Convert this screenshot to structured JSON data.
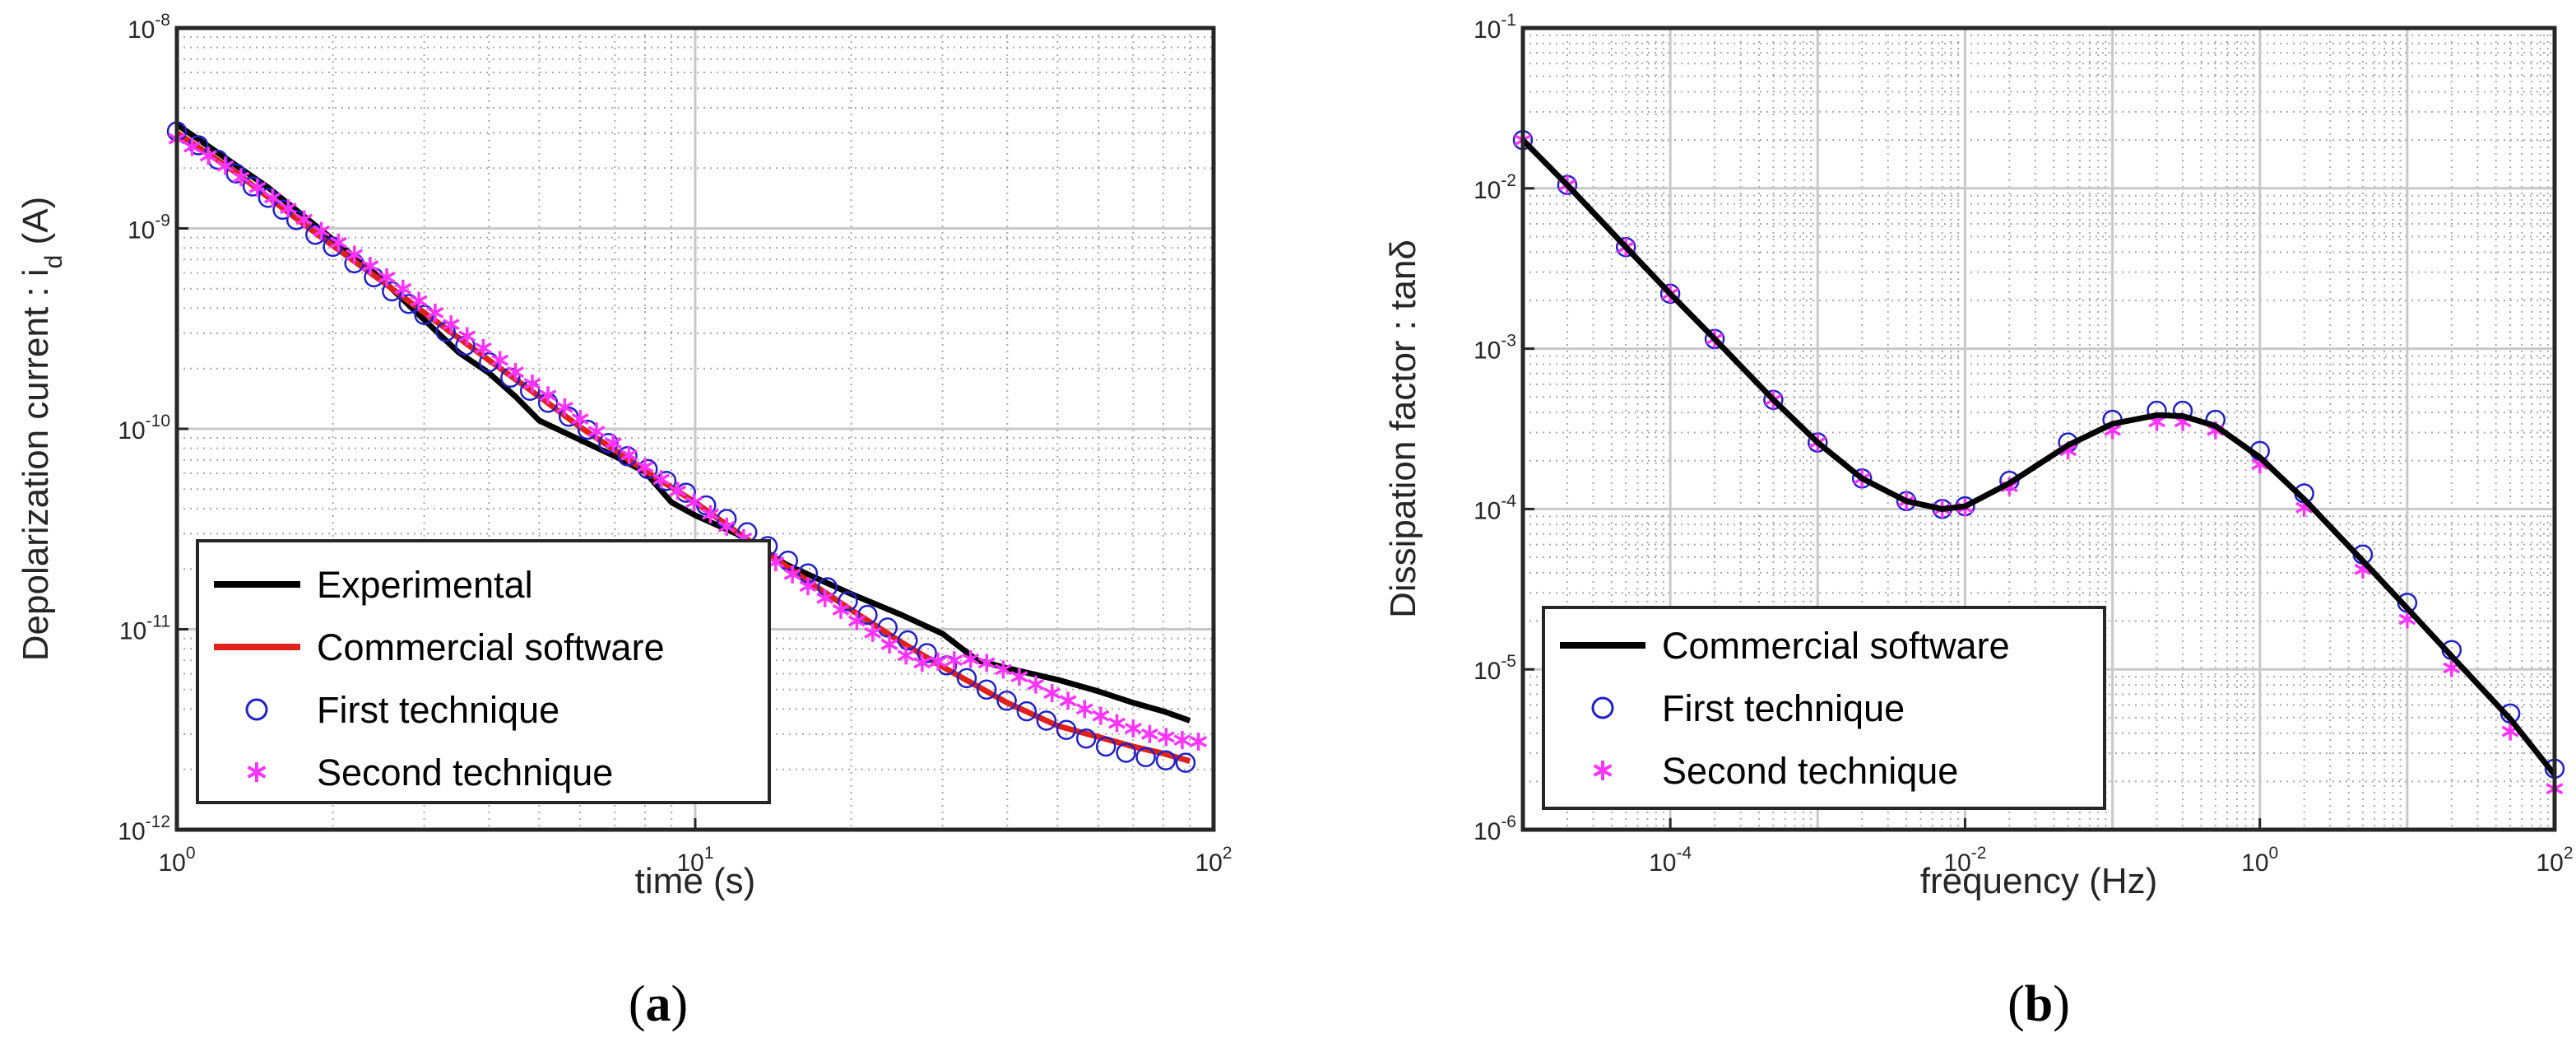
{
  "figure": {
    "panel_labels": [
      "(a)",
      "(b)"
    ]
  },
  "colors": {
    "experimental": "#000000",
    "commercial_a": "#e0201b",
    "first_technique": "#2020c8",
    "second_technique": "#ff33ff",
    "commercial_b": "#000000",
    "grid_major": "#c8c8c8",
    "grid_minor": "#a8a8a8",
    "axes": "#262626"
  },
  "chart_data": [
    {
      "type": "line",
      "panel": "(a)",
      "xlabel": "time (s)",
      "ylabel": "Depolarization current : i",
      "ylabel_sub": "d",
      "ylabel_unit": " (A)",
      "xscale": "log",
      "yscale": "log",
      "xlim": [
        1,
        100
      ],
      "ylim": [
        1e-12,
        1e-08
      ],
      "grid": true,
      "legend_location": "bottom-left",
      "x_ticks": [
        {
          "base": "10",
          "exp": "0",
          "value": 1
        },
        {
          "base": "10",
          "exp": "1",
          "value": 10
        },
        {
          "base": "10",
          "exp": "2",
          "value": 100
        }
      ],
      "y_ticks": [
        {
          "base": "10",
          "exp": "-12",
          "value": 1e-12
        },
        {
          "base": "10",
          "exp": "-11",
          "value": 1e-11
        },
        {
          "base": "10",
          "exp": "-10",
          "value": 1e-10
        },
        {
          "base": "10",
          "exp": "-9",
          "value": 1e-09
        },
        {
          "base": "10",
          "exp": "-8",
          "value": 1e-08
        }
      ],
      "series": [
        {
          "name": "Experimental",
          "style": "line",
          "color": "#000000",
          "x": [
            1,
            1.5,
            2,
            2.5,
            3,
            3.5,
            4,
            4.5,
            5,
            6,
            7,
            8,
            9,
            10,
            12,
            15,
            20,
            25,
            30,
            35,
            40,
            50,
            60,
            70,
            80,
            90
          ],
          "y": [
            3.3e-09,
            1.6e-09,
            8.8e-10,
            5.5e-10,
            3.5e-10,
            2.4e-10,
            1.9e-10,
            1.45e-10,
            1.1e-10,
            8.8e-11,
            7.3e-11,
            6.1e-11,
            4.3e-11,
            3.7e-11,
            3e-11,
            2.1e-11,
            1.5e-11,
            1.18e-11,
            9.5e-12,
            7e-12,
            6.4e-12,
            5.6e-12,
            4.9e-12,
            4.3e-12,
            3.9e-12,
            3.5e-12
          ]
        },
        {
          "name": "Commercial software",
          "style": "line",
          "color": "#e0201b",
          "x": [
            1,
            1.3,
            1.7,
            2,
            2.5,
            3,
            4,
            5,
            6,
            8,
            10,
            13,
            17,
            20,
            25,
            30,
            40,
            50,
            60,
            70,
            80,
            90
          ],
          "y": [
            3e-09,
            1.9e-09,
            1.12e-09,
            8.2e-10,
            5.4e-10,
            3.8e-10,
            2.2e-10,
            1.45e-10,
            1.02e-10,
            6.2e-11,
            4.3e-11,
            2.65e-11,
            1.65e-11,
            1.25e-11,
            8.6e-12,
            6.5e-12,
            4.3e-12,
            3.3e-12,
            2.9e-12,
            2.6e-12,
            2.4e-12,
            2.2e-12
          ]
        },
        {
          "name": "First technique",
          "style": "marker",
          "marker": "circle",
          "color": "#2020c8",
          "x": [
            1,
            1.1,
            1.2,
            1.3,
            1.4,
            1.5,
            1.6,
            1.7,
            1.85,
            2,
            2.2,
            2.4,
            2.6,
            2.8,
            3,
            3.3,
            3.6,
            4,
            4.4,
            4.8,
            5.2,
            5.7,
            6.2,
            6.8,
            7.4,
            8.1,
            8.8,
            9.6,
            10.5,
            11.5,
            12.6,
            13.8,
            15.1,
            16.5,
            18,
            19.7,
            21.5,
            23.5,
            25.7,
            28,
            30.6,
            33.4,
            36.5,
            39.9,
            43.6,
            47.6,
            52,
            56.8,
            62,
            67.8,
            74,
            80.9,
            88.3
          ],
          "y": [
            3.05e-09,
            2.6e-09,
            2.2e-09,
            1.88e-09,
            1.62e-09,
            1.42e-09,
            1.24e-09,
            1.1e-09,
            9.3e-10,
            8.1e-10,
            6.7e-10,
            5.7e-10,
            4.85e-10,
            4.2e-10,
            3.7e-10,
            3.05e-10,
            2.6e-10,
            2.15e-10,
            1.8e-10,
            1.55e-10,
            1.35e-10,
            1.15e-10,
            9.9e-11,
            8.5e-11,
            7.3e-11,
            6.3e-11,
            5.5e-11,
            4.8e-11,
            4.15e-11,
            3.55e-11,
            3.05e-11,
            2.6e-11,
            2.2e-11,
            1.9e-11,
            1.62e-11,
            1.38e-11,
            1.18e-11,
            1.02e-11,
            8.8e-12,
            7.6e-12,
            6.6e-12,
            5.7e-12,
            5e-12,
            4.4e-12,
            3.9e-12,
            3.5e-12,
            3.15e-12,
            2.85e-12,
            2.6e-12,
            2.42e-12,
            2.3e-12,
            2.22e-12,
            2.16e-12
          ]
        },
        {
          "name": "Second technique",
          "style": "marker",
          "marker": "asterisk",
          "color": "#ff33ff",
          "x": [
            1,
            1.07,
            1.15,
            1.24,
            1.33,
            1.43,
            1.53,
            1.64,
            1.76,
            1.9,
            2.05,
            2.2,
            2.36,
            2.54,
            2.73,
            2.93,
            3.15,
            3.38,
            3.63,
            3.9,
            4.2,
            4.5,
            4.85,
            5.2,
            5.6,
            6,
            6.45,
            6.95,
            7.45,
            8,
            8.6,
            9.25,
            9.95,
            10.7,
            11.5,
            12.4,
            13.3,
            14.3,
            15.4,
            16.5,
            17.8,
            19.1,
            20.5,
            22,
            23.7,
            25.5,
            27.4,
            29.4,
            31.6,
            34,
            36.5,
            39.3,
            42.2,
            45.4,
            48.8,
            52.4,
            56.4,
            60.6,
            65.1,
            70,
            75.3,
            81,
            87,
            93.5
          ],
          "y": [
            2.8e-09,
            2.55e-09,
            2.3e-09,
            2.05e-09,
            1.8e-09,
            1.6e-09,
            1.42e-09,
            1.26e-09,
            1.11e-09,
            9.7e-10,
            8.5e-10,
            7.4e-10,
            6.5e-10,
            5.7e-10,
            5e-10,
            4.35e-10,
            3.8e-10,
            3.32e-10,
            2.9e-10,
            2.53e-10,
            2.2e-10,
            1.92e-10,
            1.68e-10,
            1.47e-10,
            1.28e-10,
            1.12e-10,
            9.7e-11,
            8.5e-11,
            7.4e-11,
            6.45e-11,
            5.6e-11,
            4.9e-11,
            4.3e-11,
            3.75e-11,
            3.25e-11,
            2.85e-11,
            2.48e-11,
            2.16e-11,
            1.88e-11,
            1.64e-11,
            1.43e-11,
            1.25e-11,
            1.1e-11,
            9.6e-12,
            8.4e-12,
            7.4e-12,
            6.8e-12,
            6.9e-12,
            7e-12,
            7.1e-12,
            6.8e-12,
            6.3e-12,
            5.8e-12,
            5.3e-12,
            4.8e-12,
            4.4e-12,
            4e-12,
            3.7e-12,
            3.4e-12,
            3.2e-12,
            3e-12,
            2.9e-12,
            2.8e-12,
            2.75e-12
          ]
        }
      ]
    },
    {
      "type": "line",
      "panel": "(b)",
      "xlabel": "frequency (Hz)",
      "ylabel": "Dissipation factor : tanδ",
      "xscale": "log",
      "yscale": "log",
      "xlim": [
        1e-05,
        100
      ],
      "ylim": [
        1e-06,
        0.1
      ],
      "grid": true,
      "legend_location": "bottom-left",
      "x_ticks": [
        {
          "base": "10",
          "exp": "-4",
          "value": 0.0001
        },
        {
          "base": "10",
          "exp": "-2",
          "value": 0.01
        },
        {
          "base": "10",
          "exp": "0",
          "value": 1
        },
        {
          "base": "10",
          "exp": "2",
          "value": 100
        }
      ],
      "y_ticks": [
        {
          "base": "10",
          "exp": "-6",
          "value": 1e-06
        },
        {
          "base": "10",
          "exp": "-5",
          "value": 1e-05
        },
        {
          "base": "10",
          "exp": "-4",
          "value": 0.0001
        },
        {
          "base": "10",
          "exp": "-3",
          "value": 0.001
        },
        {
          "base": "10",
          "exp": "-2",
          "value": 0.01
        },
        {
          "base": "10",
          "exp": "-1",
          "value": 0.1
        }
      ],
      "series": [
        {
          "name": "Commercial software",
          "style": "line",
          "color": "#000000",
          "x": [
            1e-05,
            2e-05,
            5e-05,
            0.0001,
            0.0002,
            0.0005,
            0.001,
            0.002,
            0.004,
            0.007,
            0.01,
            0.02,
            0.05,
            0.1,
            0.2,
            0.3,
            0.5,
            1,
            2,
            5,
            10,
            20,
            50,
            100
          ],
          "y": [
            0.02,
            0.0105,
            0.0043,
            0.0022,
            0.00115,
            0.00048,
            0.00026,
            0.000155,
            0.000112,
            0.0001,
            0.000104,
            0.000145,
            0.00025,
            0.00034,
            0.000385,
            0.00038,
            0.00033,
            0.00021,
            0.000115,
            4.75e-05,
            2.4e-05,
            1.21e-05,
            4.9e-06,
            2.2e-06
          ]
        },
        {
          "name": "First technique",
          "style": "marker",
          "marker": "circle",
          "color": "#2020c8",
          "x": [
            1e-05,
            2e-05,
            5e-05,
            0.0001,
            0.0002,
            0.0005,
            0.001,
            0.002,
            0.004,
            0.007,
            0.01,
            0.02,
            0.05,
            0.1,
            0.2,
            0.3,
            0.5,
            1,
            2,
            5,
            10,
            20,
            50,
            100
          ],
          "y": [
            0.02,
            0.0105,
            0.0043,
            0.0022,
            0.00115,
            0.00048,
            0.00026,
            0.000155,
            0.000112,
            0.0001,
            0.000104,
            0.00015,
            0.00026,
            0.00036,
            0.00041,
            0.00041,
            0.00036,
            0.00023,
            0.000125,
            5.2e-05,
            2.6e-05,
            1.32e-05,
            5.3e-06,
            2.4e-06
          ]
        },
        {
          "name": "Second technique",
          "style": "marker",
          "marker": "asterisk",
          "color": "#ff33ff",
          "x": [
            1e-05,
            2e-05,
            5e-05,
            0.0001,
            0.0002,
            0.0005,
            0.001,
            0.002,
            0.004,
            0.007,
            0.01,
            0.02,
            0.05,
            0.1,
            0.2,
            0.3,
            0.5,
            1,
            2,
            5,
            10,
            20,
            50,
            100
          ],
          "y": [
            0.02,
            0.0105,
            0.0043,
            0.0022,
            0.00115,
            0.00048,
            0.00026,
            0.000155,
            0.000112,
            0.0001,
            0.000102,
            0.000138,
            0.000232,
            0.00031,
            0.00035,
            0.00035,
            0.00031,
            0.00019,
            0.000102,
            4.2e-05,
            2.05e-05,
            1.02e-05,
            4.1e-06,
            1.8e-06
          ]
        }
      ]
    }
  ]
}
